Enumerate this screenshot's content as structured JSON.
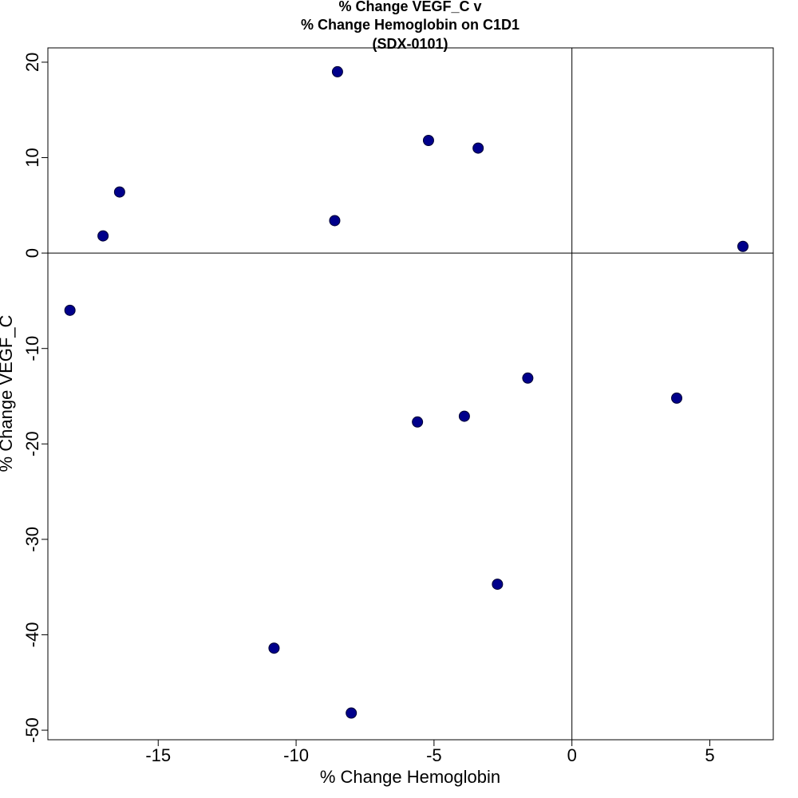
{
  "chart_data": {
    "type": "scatter",
    "title_lines": [
      "% Change VEGF_C v",
      "% Change Hemoglobin on C1D1",
      "(SDX-0101)"
    ],
    "xlabel": "% Change Hemoglobin",
    "ylabel": "% Change VEGF_C",
    "xlim": [
      -19,
      7.3
    ],
    "ylim": [
      -51,
      21.5
    ],
    "x_ticks": [
      -15,
      -10,
      -5,
      0,
      5
    ],
    "y_ticks": [
      -50,
      -40,
      -30,
      -20,
      -10,
      0,
      10,
      20
    ],
    "reference_lines": {
      "x": 0,
      "y": 0
    },
    "point_color": "#00008B",
    "points": [
      {
        "x": -8.5,
        "y": 19.0
      },
      {
        "x": -5.2,
        "y": 11.8
      },
      {
        "x": -3.4,
        "y": 11.0
      },
      {
        "x": -16.4,
        "y": 6.4
      },
      {
        "x": -17.0,
        "y": 1.8
      },
      {
        "x": -8.6,
        "y": 3.4
      },
      {
        "x": 6.2,
        "y": 0.7
      },
      {
        "x": -18.2,
        "y": -6.0
      },
      {
        "x": -1.6,
        "y": -13.1
      },
      {
        "x": 3.8,
        "y": -15.2
      },
      {
        "x": -3.9,
        "y": -17.1
      },
      {
        "x": -5.6,
        "y": -17.7
      },
      {
        "x": -2.7,
        "y": -34.7
      },
      {
        "x": -10.8,
        "y": -41.4
      },
      {
        "x": -8.0,
        "y": -48.2
      }
    ]
  }
}
